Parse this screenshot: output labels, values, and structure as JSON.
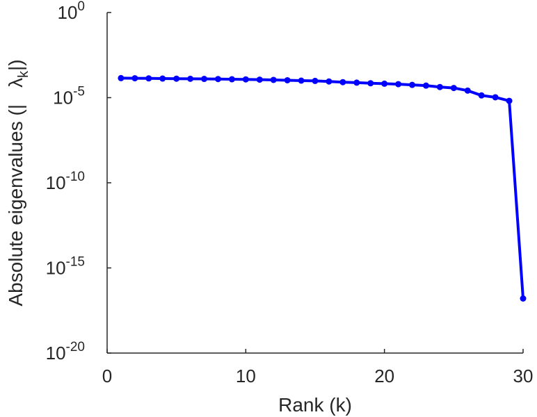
{
  "chart_data": {
    "type": "line",
    "xlabel": "Rank (k)",
    "ylabel": {
      "prefix": "Absolute eigenvalues (|",
      "symbol": "λ",
      "subscript": "k",
      "suffix": "|)"
    },
    "y_scale": "log",
    "xlim": [
      0,
      30
    ],
    "ylim": [
      1e-20,
      1
    ],
    "x_ticks": [
      {
        "value": 0,
        "label": "0"
      },
      {
        "value": 10,
        "label": "10"
      },
      {
        "value": 20,
        "label": "20"
      },
      {
        "value": 30,
        "label": "30"
      }
    ],
    "y_ticks": [
      {
        "value": 1e-20,
        "base": "10",
        "exp": "-20"
      },
      {
        "value": 1e-15,
        "base": "10",
        "exp": "-15"
      },
      {
        "value": 1e-10,
        "base": "10",
        "exp": "-10"
      },
      {
        "value": 1e-05,
        "base": "10",
        "exp": "-5"
      },
      {
        "value": 1,
        "base": "10",
        "exp": "0"
      }
    ],
    "grid": false,
    "series_color": "#0000ff",
    "series": [
      {
        "x": [
          1,
          2,
          3,
          4,
          5,
          6,
          7,
          8,
          9,
          10,
          11,
          12,
          13,
          14,
          15,
          16,
          17,
          18,
          19,
          20,
          21,
          22,
          23,
          24,
          25,
          26,
          27,
          28,
          29,
          30
        ],
        "y": [
          0.00014,
          0.000138,
          0.000135,
          0.000132,
          0.00013,
          0.000128,
          0.000126,
          0.000124,
          0.00012,
          0.000118,
          0.000114,
          0.00011,
          0.000105,
          0.0001,
          9.6e-05,
          8.9e-05,
          8.1e-05,
          7.6e-05,
          7e-05,
          6.6e-05,
          6.2e-05,
          5.6e-05,
          5.1e-05,
          4.2e-05,
          3.7e-05,
          2.6e-05,
          1.35e-05,
          1.05e-05,
          6.5e-06,
          1.6e-17
        ]
      }
    ]
  }
}
